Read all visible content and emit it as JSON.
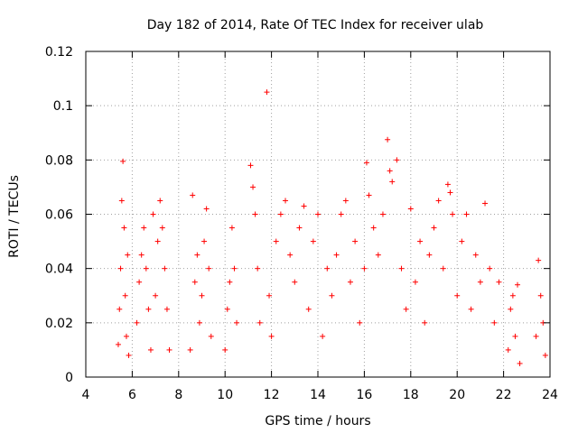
{
  "chart_data": {
    "type": "scatter",
    "title": "Day 182 of 2014, Rate Of TEC Index for receiver ulab",
    "xlabel": "GPS time / hours",
    "ylabel": "ROTI / TECUs",
    "xlim": [
      4,
      24
    ],
    "ylim": [
      0,
      0.12
    ],
    "xticks": [
      4,
      6,
      8,
      10,
      12,
      14,
      16,
      18,
      20,
      22,
      24
    ],
    "xtick_labels": [
      "4",
      "6",
      "8",
      "10",
      "12",
      "14",
      "16",
      "18",
      "20",
      "22",
      "24"
    ],
    "yticks": [
      0,
      0.02,
      0.04,
      0.06,
      0.08,
      0.1,
      0.12
    ],
    "ytick_labels": [
      "0",
      "0.02",
      "0.04",
      "0.06",
      "0.08",
      "0.1",
      "0.12"
    ],
    "grid": true,
    "marker": "+",
    "color": "#ff0000",
    "series": [
      {
        "name": "ROTI",
        "points": [
          [
            5.4,
            0.012
          ],
          [
            5.45,
            0.025
          ],
          [
            5.5,
            0.04
          ],
          [
            5.55,
            0.065
          ],
          [
            5.6,
            0.0795
          ],
          [
            5.65,
            0.055
          ],
          [
            5.7,
            0.03
          ],
          [
            5.75,
            0.015
          ],
          [
            5.8,
            0.045
          ],
          [
            5.85,
            0.008
          ],
          [
            6.2,
            0.02
          ],
          [
            6.3,
            0.035
          ],
          [
            6.4,
            0.045
          ],
          [
            6.5,
            0.055
          ],
          [
            6.6,
            0.04
          ],
          [
            6.7,
            0.025
          ],
          [
            6.8,
            0.01
          ],
          [
            6.9,
            0.06
          ],
          [
            7.0,
            0.03
          ],
          [
            7.1,
            0.05
          ],
          [
            7.2,
            0.065
          ],
          [
            7.3,
            0.055
          ],
          [
            7.4,
            0.04
          ],
          [
            7.5,
            0.025
          ],
          [
            7.6,
            0.01
          ],
          [
            8.5,
            0.01
          ],
          [
            8.6,
            0.067
          ],
          [
            8.7,
            0.035
          ],
          [
            8.8,
            0.045
          ],
          [
            8.9,
            0.02
          ],
          [
            9.0,
            0.03
          ],
          [
            9.1,
            0.05
          ],
          [
            9.2,
            0.062
          ],
          [
            9.3,
            0.04
          ],
          [
            9.4,
            0.015
          ],
          [
            10.0,
            0.01
          ],
          [
            10.1,
            0.025
          ],
          [
            10.2,
            0.035
          ],
          [
            10.3,
            0.055
          ],
          [
            10.4,
            0.04
          ],
          [
            10.5,
            0.02
          ],
          [
            11.1,
            0.078
          ],
          [
            11.2,
            0.07
          ],
          [
            11.3,
            0.06
          ],
          [
            11.4,
            0.04
          ],
          [
            11.5,
            0.02
          ],
          [
            11.8,
            0.105
          ],
          [
            11.9,
            0.03
          ],
          [
            12.0,
            0.015
          ],
          [
            12.2,
            0.05
          ],
          [
            12.4,
            0.06
          ],
          [
            12.6,
            0.065
          ],
          [
            12.8,
            0.045
          ],
          [
            13.0,
            0.035
          ],
          [
            13.2,
            0.055
          ],
          [
            13.4,
            0.063
          ],
          [
            13.6,
            0.025
          ],
          [
            13.8,
            0.05
          ],
          [
            14.0,
            0.06
          ],
          [
            14.2,
            0.015
          ],
          [
            14.4,
            0.04
          ],
          [
            14.6,
            0.03
          ],
          [
            14.8,
            0.045
          ],
          [
            15.0,
            0.06
          ],
          [
            15.2,
            0.065
          ],
          [
            15.4,
            0.035
          ],
          [
            15.6,
            0.05
          ],
          [
            15.8,
            0.02
          ],
          [
            16.0,
            0.04
          ],
          [
            16.1,
            0.079
          ],
          [
            16.2,
            0.067
          ],
          [
            16.4,
            0.055
          ],
          [
            16.6,
            0.045
          ],
          [
            16.8,
            0.06
          ],
          [
            17.0,
            0.0875
          ],
          [
            17.1,
            0.076
          ],
          [
            17.2,
            0.072
          ],
          [
            17.4,
            0.08
          ],
          [
            17.6,
            0.04
          ],
          [
            17.8,
            0.025
          ],
          [
            18.0,
            0.062
          ],
          [
            18.2,
            0.035
          ],
          [
            18.4,
            0.05
          ],
          [
            18.6,
            0.02
          ],
          [
            18.8,
            0.045
          ],
          [
            19.0,
            0.055
          ],
          [
            19.2,
            0.065
          ],
          [
            19.4,
            0.04
          ],
          [
            19.6,
            0.071
          ],
          [
            19.7,
            0.068
          ],
          [
            19.8,
            0.06
          ],
          [
            20.0,
            0.03
          ],
          [
            20.2,
            0.05
          ],
          [
            20.4,
            0.06
          ],
          [
            20.6,
            0.025
          ],
          [
            20.8,
            0.045
          ],
          [
            21.0,
            0.035
          ],
          [
            21.2,
            0.064
          ],
          [
            21.4,
            0.04
          ],
          [
            21.6,
            0.02
          ],
          [
            21.8,
            0.035
          ],
          [
            22.2,
            0.01
          ],
          [
            22.3,
            0.025
          ],
          [
            22.4,
            0.03
          ],
          [
            22.5,
            0.015
          ],
          [
            22.6,
            0.034
          ],
          [
            22.7,
            0.005
          ],
          [
            23.4,
            0.015
          ],
          [
            23.5,
            0.043
          ],
          [
            23.6,
            0.03
          ],
          [
            23.7,
            0.02
          ],
          [
            23.8,
            0.008
          ]
        ]
      }
    ]
  }
}
